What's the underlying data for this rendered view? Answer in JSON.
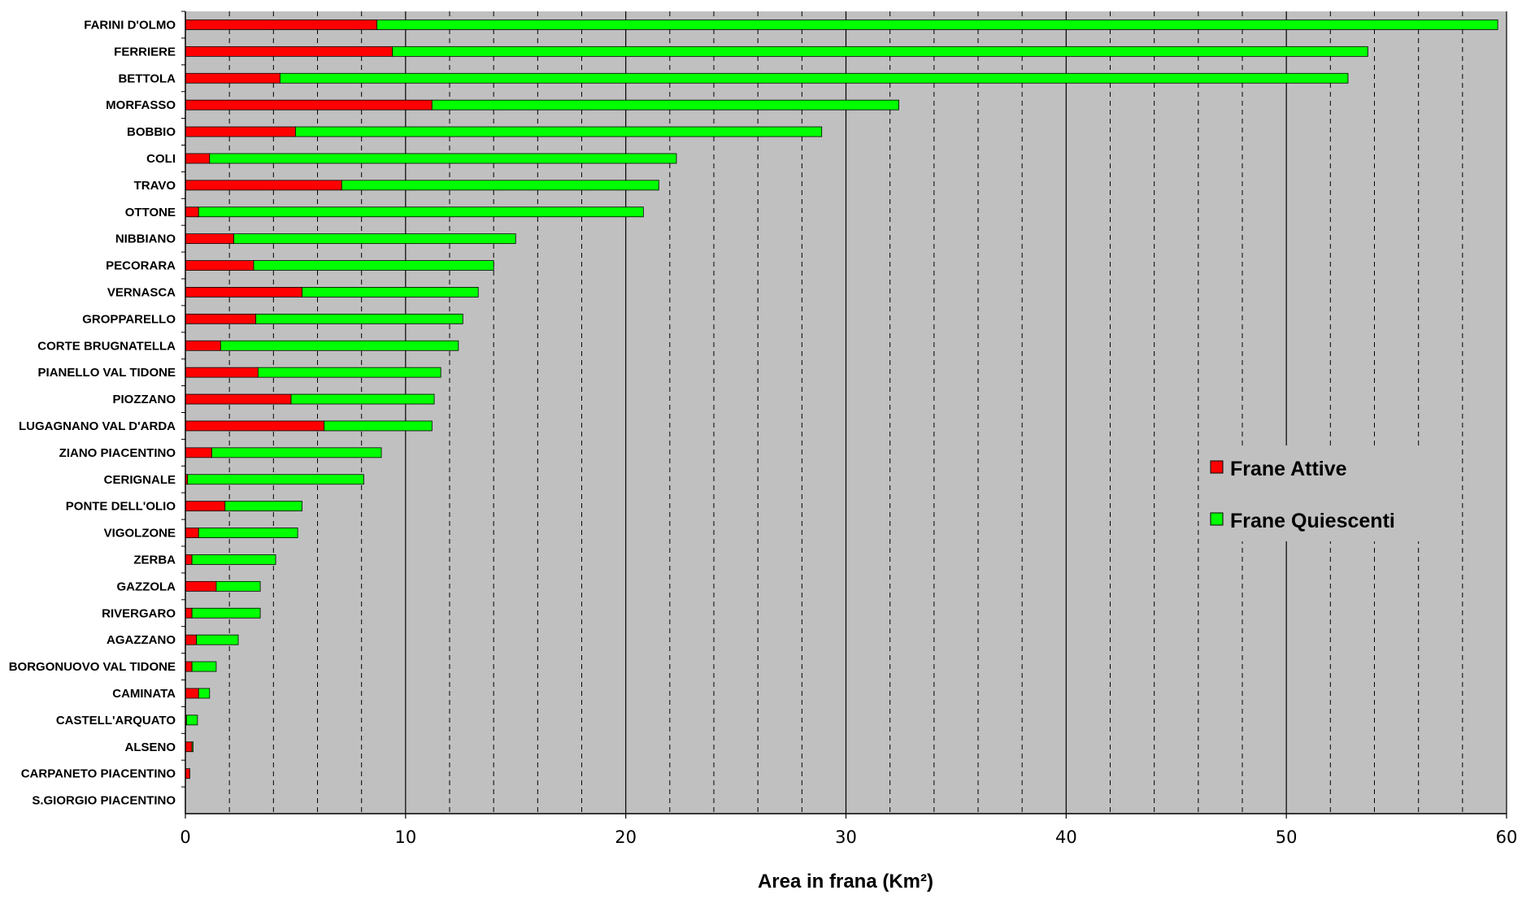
{
  "chart_data": {
    "type": "bar",
    "orientation": "horizontal",
    "stacked": true,
    "xlabel": "Area in frana (Km²)",
    "xlim": [
      0,
      60
    ],
    "x_major_ticks": [
      0,
      10,
      20,
      30,
      40,
      50,
      60
    ],
    "x_minor_step": 2,
    "grid": "vertical, solid major every 10 and dashed minor every 2",
    "legend_position": "right",
    "background": "#c0c0c0",
    "categories": [
      "FARINI D'OLMO",
      "FERRIERE",
      "BETTOLA",
      "MORFASSO",
      "BOBBIO",
      "COLI",
      "TRAVO",
      "OTTONE",
      "NIBBIANO",
      "PECORARA",
      "VERNASCA",
      "GROPPARELLO",
      "CORTE BRUGNATELLA",
      "PIANELLO VAL TIDONE",
      "PIOZZANO",
      "LUGAGNANO VAL D'ARDA",
      "ZIANO PIACENTINO",
      "CERIGNALE",
      "PONTE DELL'OLIO",
      "VIGOLZONE",
      "ZERBA",
      "GAZZOLA",
      "RIVERGARO",
      "AGAZZANO",
      "BORGONUOVO VAL TIDONE",
      "CAMINATA",
      "CASTELL'ARQUATO",
      "ALSENO",
      "CARPANETO PIACENTINO",
      "S.GIORGIO PIACENTINO"
    ],
    "series": [
      {
        "name": "Frane Attive",
        "color": "#ff0000",
        "values": [
          8.7,
          9.4,
          4.3,
          11.2,
          5.0,
          1.1,
          7.1,
          0.6,
          2.2,
          3.1,
          5.3,
          3.2,
          1.6,
          3.3,
          4.8,
          6.3,
          1.2,
          0.1,
          1.8,
          0.6,
          0.3,
          1.4,
          0.3,
          0.5,
          0.3,
          0.6,
          0.05,
          0.3,
          0.2,
          0.0
        ]
      },
      {
        "name": "Frane Quiescenti",
        "color": "#00ff00",
        "values": [
          50.9,
          44.3,
          48.5,
          21.2,
          23.9,
          21.2,
          14.4,
          20.2,
          12.8,
          10.9,
          8.0,
          9.4,
          10.8,
          8.3,
          6.5,
          4.9,
          7.7,
          8.0,
          3.5,
          4.5,
          3.8,
          2.0,
          3.1,
          1.9,
          1.1,
          0.5,
          0.5,
          0.05,
          0.0,
          0.0
        ]
      }
    ]
  }
}
